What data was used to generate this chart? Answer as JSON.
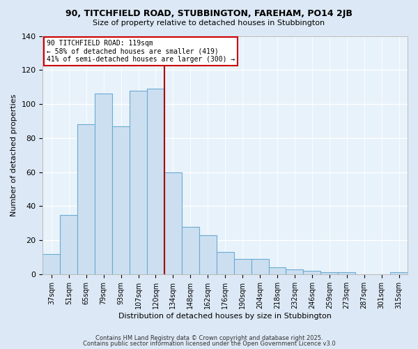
{
  "title1": "90, TITCHFIELD ROAD, STUBBINGTON, FAREHAM, PO14 2JB",
  "title2": "Size of property relative to detached houses in Stubbington",
  "xlabel": "Distribution of detached houses by size in Stubbington",
  "ylabel": "Number of detached properties",
  "categories": [
    "37sqm",
    "51sqm",
    "65sqm",
    "79sqm",
    "93sqm",
    "107sqm",
    "120sqm",
    "134sqm",
    "148sqm",
    "162sqm",
    "176sqm",
    "190sqm",
    "204sqm",
    "218sqm",
    "232sqm",
    "246sqm",
    "259sqm",
    "273sqm",
    "287sqm",
    "301sqm",
    "315sqm"
  ],
  "values": [
    12,
    35,
    88,
    106,
    87,
    108,
    109,
    60,
    28,
    23,
    13,
    9,
    9,
    4,
    3,
    2,
    1,
    1,
    0,
    0,
    1
  ],
  "bar_color": "#ccdff0",
  "bar_edge_color": "#6aaad4",
  "property_line_x": 6.5,
  "annotation_line1": "90 TITCHFIELD ROAD: 119sqm",
  "annotation_line2": "← 58% of detached houses are smaller (419)",
  "annotation_line3": "41% of semi-detached houses are larger (300) →",
  "annotation_box_color": "#ffffff",
  "annotation_border_color": "#cc0000",
  "vline_color": "#aa0000",
  "footer1": "Contains HM Land Registry data © Crown copyright and database right 2025.",
  "footer2": "Contains public sector information licensed under the Open Government Licence v3.0",
  "bg_color": "#dce8f5",
  "plot_bg_color": "#e8f2fa",
  "ylim": [
    0,
    140
  ],
  "yticks": [
    0,
    20,
    40,
    60,
    80,
    100,
    120,
    140
  ],
  "grid_color": "#ffffff"
}
